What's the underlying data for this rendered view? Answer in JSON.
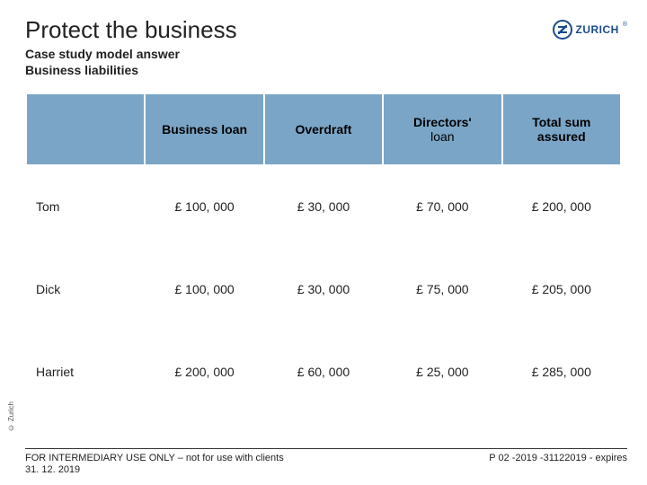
{
  "branding": {
    "logo_text": "ZURICH"
  },
  "header": {
    "title": "Protect the business",
    "subtitle_line1": "Case study model answer",
    "subtitle_line2": "Business liabilities"
  },
  "table": {
    "header_bg": "#7aa5c6",
    "columns": [
      "",
      "Business loan",
      "Overdraft",
      "Directors' loan",
      "Total sum assured"
    ],
    "col3_line1": "Directors'",
    "col3_line2": "loan",
    "rows": [
      {
        "name": "Tom",
        "cells": [
          "£ 100, 000",
          "£ 30, 000",
          "£ 70, 000",
          "£ 200, 000"
        ]
      },
      {
        "name": "Dick",
        "cells": [
          "£ 100, 000",
          "£ 30, 000",
          "£ 75, 000",
          "£ 205, 000"
        ]
      },
      {
        "name": "Harriet",
        "cells": [
          "£ 200, 000",
          "£ 60, 000",
          "£ 25, 000",
          "£ 285, 000"
        ]
      }
    ]
  },
  "footer": {
    "left_line1": "FOR INTERMEDIARY USE ONLY – not for use with clients",
    "left_line2": "31. 12. 2019",
    "right": "P 02 -2019 -31122019 - expires"
  },
  "copyright": "© Zurich"
}
